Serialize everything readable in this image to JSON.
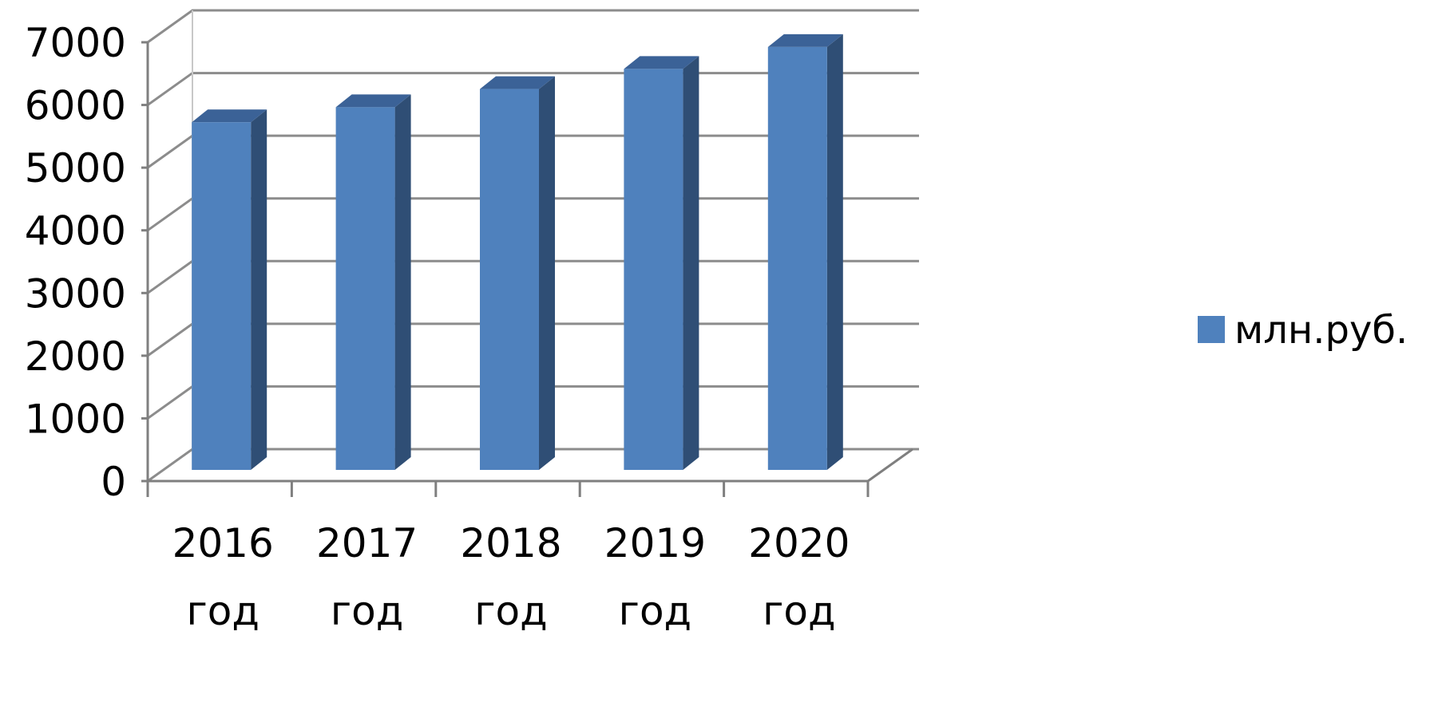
{
  "chart_data": {
    "type": "bar",
    "categories": [
      [
        "2016",
        "год"
      ],
      [
        "2017",
        "год"
      ],
      [
        "2018",
        "год"
      ],
      [
        "2019",
        "год"
      ],
      [
        "2020",
        "год"
      ]
    ],
    "series": [
      {
        "name": "млн.руб.",
        "values": [
          5750,
          5990,
          6280,
          6600,
          6950
        ],
        "color": "#4F81BD"
      }
    ],
    "y_ticks": [
      "0",
      "1000",
      "2000",
      "3000",
      "4000",
      "5000",
      "6000",
      "7000"
    ],
    "ylim": [
      0,
      7000
    ],
    "grid": true,
    "style": "3d-column",
    "legend_position": "right",
    "colors": {
      "bar_front": "#4F81BD",
      "bar_side": "#2F4E75",
      "bar_top": "#3B6297",
      "gridline": "#8C8C8C",
      "axis": "#7F7F7F"
    }
  }
}
